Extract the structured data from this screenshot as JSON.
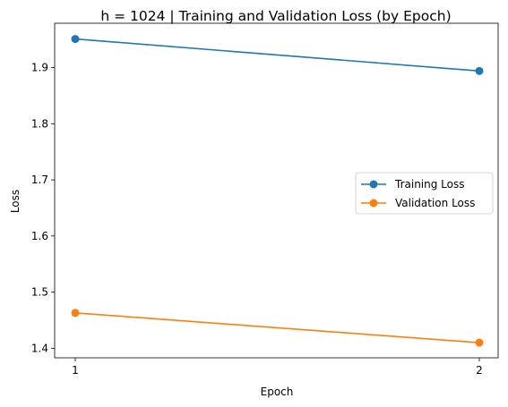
{
  "chart_data": {
    "type": "line",
    "title": "h = 1024 | Training and Validation Loss (by Epoch)",
    "xlabel": "Epoch",
    "ylabel": "Loss",
    "x": [
      1,
      2
    ],
    "x_ticks": [
      "1",
      "2"
    ],
    "y_ticks": [
      "1.4",
      "1.5",
      "1.6",
      "1.7",
      "1.8",
      "1.9"
    ],
    "ylim": [
      1.383,
      1.979
    ],
    "grid": false,
    "legend_position": "center-right",
    "series": [
      {
        "name": "Training Loss",
        "color": "#1f77b4",
        "marker": "circle",
        "values": [
          1.951,
          1.894
        ]
      },
      {
        "name": "Validation Loss",
        "color": "#ff7f0e",
        "marker": "circle",
        "values": [
          1.463,
          1.41
        ]
      }
    ]
  }
}
